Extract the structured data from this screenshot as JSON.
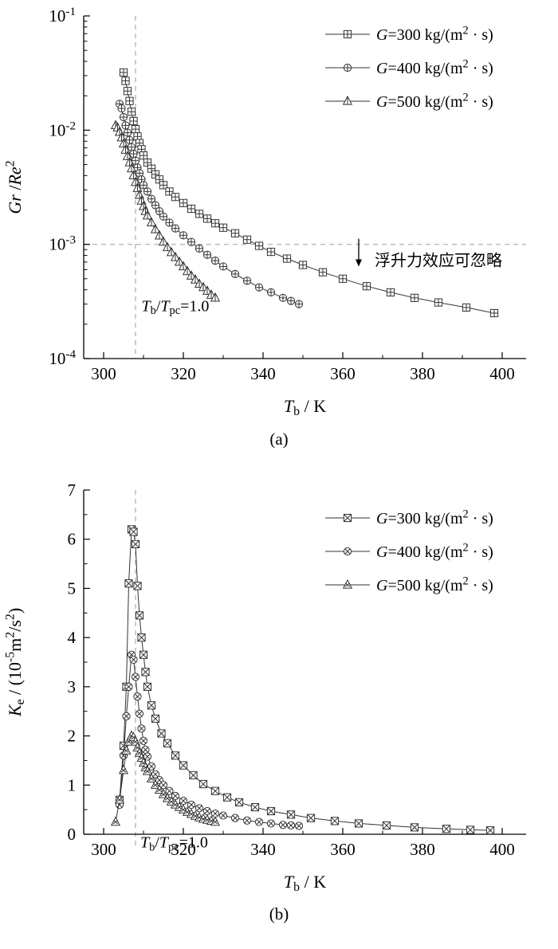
{
  "page": {
    "background": "#ffffff",
    "line_color": "#333333",
    "dash_color": "#aaaaaa"
  },
  "chart_data": [
    {
      "id": "a",
      "type": "line",
      "caption": "(a)",
      "xlabel": "*T*_{b} / K",
      "ylabel": "*Gr* /*Re*^{2}",
      "xlim": [
        295,
        406
      ],
      "ylim": [
        0.0001,
        0.1
      ],
      "yscale": "log",
      "xticks": [
        300,
        320,
        340,
        360,
        380,
        400
      ],
      "xminor": [
        310,
        330,
        350,
        370,
        390
      ],
      "yticks": [
        0.0001,
        0.001,
        0.01,
        0.1
      ],
      "ytick_labels": [
        "10^{-4}",
        "10^{-3}",
        "10^{-2}",
        "10^{-1}"
      ],
      "legend_position": "top-right",
      "grid": false,
      "series": [
        {
          "name": "*G*=300 kg/(m^{2} · s)",
          "marker": "square-plus",
          "points": [
            [
              305,
              0.032
            ],
            [
              305.5,
              0.027
            ],
            [
              306,
              0.022
            ],
            [
              306.5,
              0.018
            ],
            [
              307,
              0.0145
            ],
            [
              307.5,
              0.012
            ],
            [
              308,
              0.0102
            ],
            [
              308.5,
              0.0088
            ],
            [
              309,
              0.0077
            ],
            [
              309.5,
              0.0068
            ],
            [
              310,
              0.006
            ],
            [
              311,
              0.0052
            ],
            [
              312,
              0.0046
            ],
            [
              313,
              0.0041
            ],
            [
              314,
              0.0037
            ],
            [
              315,
              0.0033
            ],
            [
              316.5,
              0.0029
            ],
            [
              318,
              0.0026
            ],
            [
              320,
              0.0023
            ],
            [
              322,
              0.00205
            ],
            [
              324,
              0.00185
            ],
            [
              326,
              0.00168
            ],
            [
              328,
              0.00153
            ],
            [
              330,
              0.0014
            ],
            [
              333,
              0.00125
            ],
            [
              336,
              0.0011
            ],
            [
              339,
              0.00097
            ],
            [
              342,
              0.00086
            ],
            [
              346,
              0.00075
            ],
            [
              350,
              0.00066
            ],
            [
              355,
              0.00057
            ],
            [
              360,
              0.0005
            ],
            [
              366,
              0.00043
            ],
            [
              372,
              0.00038
            ],
            [
              378,
              0.00034
            ],
            [
              384,
              0.00031
            ],
            [
              391,
              0.00028
            ],
            [
              398,
              0.00025
            ]
          ]
        },
        {
          "name": "*G*=400 kg/(m^{2} · s)",
          "marker": "circle-plus",
          "points": [
            [
              304,
              0.017
            ],
            [
              304.5,
              0.0155
            ],
            [
              305,
              0.013
            ],
            [
              305.5,
              0.011
            ],
            [
              306,
              0.0095
            ],
            [
              306.5,
              0.0082
            ],
            [
              307,
              0.0071
            ],
            [
              307.5,
              0.0062
            ],
            [
              308,
              0.0054
            ],
            [
              308.5,
              0.0047
            ],
            [
              309,
              0.0042
            ],
            [
              309.5,
              0.0037
            ],
            [
              310,
              0.0033
            ],
            [
              311,
              0.0029
            ],
            [
              312,
              0.0025
            ],
            [
              313,
              0.0022
            ],
            [
              314,
              0.00195
            ],
            [
              315,
              0.00175
            ],
            [
              316.5,
              0.00155
            ],
            [
              318,
              0.00138
            ],
            [
              320,
              0.0012
            ],
            [
              322,
              0.00105
            ],
            [
              324,
              0.00092
            ],
            [
              326,
              0.00081
            ],
            [
              328,
              0.00072
            ],
            [
              330,
              0.00064
            ],
            [
              333,
              0.00055
            ],
            [
              336,
              0.00048
            ],
            [
              339,
              0.00042
            ],
            [
              342,
              0.00038
            ],
            [
              345,
              0.00034
            ],
            [
              347,
              0.00032
            ],
            [
              349,
              0.0003
            ]
          ]
        },
        {
          "name": "*G*=500 kg/(m^{2} · s)",
          "marker": "triangle-plus",
          "points": [
            [
              303,
              0.011
            ],
            [
              303.5,
              0.0105
            ],
            [
              304,
              0.0096
            ],
            [
              304.5,
              0.0086
            ],
            [
              305,
              0.0076
            ],
            [
              305.5,
              0.0067
            ],
            [
              306,
              0.0059
            ],
            [
              306.5,
              0.0052
            ],
            [
              307,
              0.0046
            ],
            [
              307.5,
              0.004
            ],
            [
              308,
              0.0035
            ],
            [
              308.5,
              0.0031
            ],
            [
              309,
              0.0027
            ],
            [
              309.5,
              0.0024
            ],
            [
              310,
              0.00215
            ],
            [
              310.5,
              0.00195
            ],
            [
              311,
              0.00178
            ],
            [
              312,
              0.00155
            ],
            [
              313,
              0.00135
            ],
            [
              314,
              0.00119
            ],
            [
              315,
              0.00105
            ],
            [
              316,
              0.00094
            ],
            [
              317,
              0.00085
            ],
            [
              318,
              0.00077
            ],
            [
              319,
              0.0007
            ],
            [
              320,
              0.00064
            ],
            [
              321,
              0.00058
            ],
            [
              322,
              0.00053
            ],
            [
              323,
              0.00049
            ],
            [
              324,
              0.00045
            ],
            [
              325,
              0.00042
            ],
            [
              326,
              0.00039
            ],
            [
              327,
              0.00036
            ],
            [
              328,
              0.00034
            ]
          ]
        }
      ],
      "annotations": {
        "vline_x": 308,
        "hline_y": 0.001,
        "vline_label": "*T*_{b}/*T*_{pc}=1.0",
        "vline_label_pos": [
          309.5,
          0.00026
        ],
        "arrow": {
          "x": 364,
          "y_from": 0.00112,
          "y_to": 0.00064
        },
        "arrow_label": "浮升力效应可忽略",
        "arrow_label_pos": [
          368,
          0.00073
        ]
      }
    },
    {
      "id": "b",
      "type": "line",
      "caption": "(b)",
      "xlabel": "*T*_{b} / K",
      "ylabel": "*K*_{e} / (10^{-5}m^{2}/s^{2})",
      "xlim": [
        295,
        406
      ],
      "ylim": [
        0,
        7
      ],
      "yscale": "linear",
      "xticks": [
        300,
        320,
        340,
        360,
        380,
        400
      ],
      "xminor": [
        310,
        330,
        350,
        370,
        390
      ],
      "yticks": [
        0,
        1,
        2,
        3,
        4,
        5,
        6,
        7
      ],
      "ytick_labels": [
        "0",
        "1",
        "2",
        "3",
        "4",
        "5",
        "6",
        "7"
      ],
      "yminor_step": 0.5,
      "legend_position": "top-right",
      "grid": false,
      "series": [
        {
          "name": "*G*=300 kg/(m^{2} · s)",
          "marker": "square-x",
          "points": [
            [
              304,
              0.7
            ],
            [
              305,
              1.8
            ],
            [
              305.7,
              3.0
            ],
            [
              306.3,
              5.1
            ],
            [
              307,
              6.2
            ],
            [
              307.5,
              6.15
            ],
            [
              308,
              5.9
            ],
            [
              308.5,
              5.05
            ],
            [
              309,
              4.45
            ],
            [
              309.5,
              4.0
            ],
            [
              310,
              3.65
            ],
            [
              310.5,
              3.3
            ],
            [
              311,
              3.0
            ],
            [
              312,
              2.62
            ],
            [
              313,
              2.35
            ],
            [
              314.5,
              2.05
            ],
            [
              316,
              1.85
            ],
            [
              318,
              1.6
            ],
            [
              320,
              1.4
            ],
            [
              322.5,
              1.2
            ],
            [
              325,
              1.02
            ],
            [
              328,
              0.88
            ],
            [
              331,
              0.75
            ],
            [
              334,
              0.65
            ],
            [
              338,
              0.55
            ],
            [
              342,
              0.47
            ],
            [
              347,
              0.4
            ],
            [
              352,
              0.33
            ],
            [
              358,
              0.27
            ],
            [
              364,
              0.22
            ],
            [
              371,
              0.18
            ],
            [
              378,
              0.14
            ],
            [
              386,
              0.11
            ],
            [
              392,
              0.09
            ],
            [
              397,
              0.08
            ]
          ]
        },
        {
          "name": "*G*=400 kg/(m^{2} · s)",
          "marker": "circle-x",
          "points": [
            [
              304,
              0.6
            ],
            [
              305,
              1.6
            ],
            [
              305.7,
              2.4
            ],
            [
              306.3,
              3.0
            ],
            [
              307,
              3.65
            ],
            [
              307.5,
              3.55
            ],
            [
              308,
              3.2
            ],
            [
              308.5,
              2.8
            ],
            [
              309,
              2.45
            ],
            [
              309.5,
              2.15
            ],
            [
              310,
              1.9
            ],
            [
              310.5,
              1.72
            ],
            [
              311,
              1.58
            ],
            [
              312,
              1.38
            ],
            [
              313,
              1.22
            ],
            [
              314,
              1.1
            ],
            [
              315,
              1.0
            ],
            [
              316.5,
              0.88
            ],
            [
              318,
              0.78
            ],
            [
              320,
              0.68
            ],
            [
              322,
              0.6
            ],
            [
              324,
              0.53
            ],
            [
              326,
              0.47
            ],
            [
              328,
              0.42
            ],
            [
              330,
              0.38
            ],
            [
              333,
              0.33
            ],
            [
              336,
              0.28
            ],
            [
              339,
              0.25
            ],
            [
              342,
              0.22
            ],
            [
              345,
              0.19
            ],
            [
              347,
              0.18
            ],
            [
              349,
              0.17
            ]
          ]
        },
        {
          "name": "*G*=500 kg/(m^{2} · s)",
          "marker": "triangle-x",
          "points": [
            [
              303,
              0.25
            ],
            [
              304,
              0.7
            ],
            [
              305,
              1.3
            ],
            [
              305.7,
              1.7
            ],
            [
              306.3,
              1.88
            ],
            [
              307,
              2.0
            ],
            [
              307.5,
              1.97
            ],
            [
              308,
              1.88
            ],
            [
              308.5,
              1.76
            ],
            [
              309,
              1.65
            ],
            [
              309.5,
              1.55
            ],
            [
              310,
              1.45
            ],
            [
              310.5,
              1.36
            ],
            [
              311,
              1.28
            ],
            [
              312,
              1.13
            ],
            [
              313,
              1.0
            ],
            [
              314,
              0.9
            ],
            [
              315,
              0.81
            ],
            [
              316,
              0.73
            ],
            [
              317,
              0.66
            ],
            [
              318,
              0.6
            ],
            [
              319,
              0.55
            ],
            [
              320,
              0.5
            ],
            [
              321,
              0.45
            ],
            [
              322,
              0.41
            ],
            [
              323,
              0.37
            ],
            [
              324,
              0.34
            ],
            [
              325,
              0.31
            ],
            [
              326,
              0.29
            ],
            [
              327,
              0.27
            ],
            [
              328,
              0.25
            ]
          ]
        }
      ],
      "annotations": {
        "vline_x": 308,
        "vline_label": "*T*_{b}/*T*_{pc}=1.0",
        "vline_label_pos": [
          309.2,
          -0.27
        ]
      }
    }
  ]
}
